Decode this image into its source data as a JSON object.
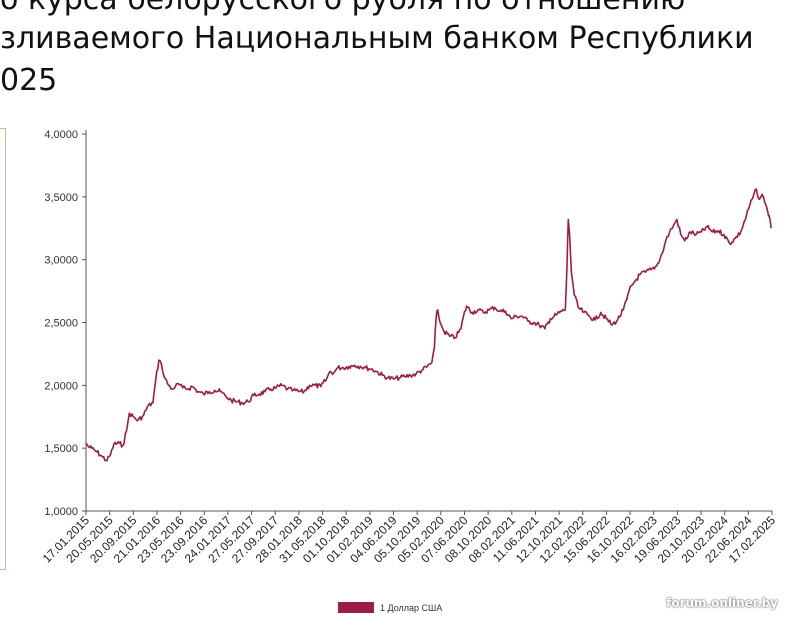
{
  "page": {
    "title_lines": [
      "о курса белорусского рубля по отношению",
      "зливаемого Национальным банком Республики",
      "025"
    ],
    "watermark": "forum.onliner.by"
  },
  "colors": {
    "series": "#9b1c46",
    "axis": "#555555",
    "frame": "#c9b896"
  },
  "chart_data": {
    "type": "line",
    "title": "",
    "xlabel": "",
    "ylabel": "",
    "ylim": [
      1.0,
      4.0
    ],
    "yticks": [
      "1,0000",
      "1,5000",
      "2,0000",
      "2,5000",
      "3,0000",
      "3,5000",
      "4,0000"
    ],
    "grid": false,
    "legend_position": "bottom",
    "xtick_labels": [
      "17.01.2015",
      "20.05.2015",
      "20.09.2015",
      "21.01.2016",
      "23.05.2016",
      "23.09.2016",
      "24.01.2017",
      "27.05.2017",
      "27.09.2017",
      "28.01.2018",
      "31.05.2018",
      "01.10.2018",
      "01.02.2019",
      "04.06.2019",
      "05.10.2019",
      "05.02.2020",
      "07.06.2020",
      "08.10.2020",
      "08.02.2021",
      "11.06.2021",
      "12.10.2021",
      "12.02.2022",
      "15.06.2022",
      "16.10.2022",
      "16.02.2023",
      "19.06.2023",
      "20.10.2023",
      "20.02.2024",
      "22.06.2024",
      "17.02.2025"
    ],
    "x_range": [
      "2015-01-01",
      "2025-03-20"
    ],
    "series": [
      {
        "name": "1 Доллар США",
        "color": "#9b1c46",
        "points": [
          [
            "2015-01-01",
            1.54
          ],
          [
            "2015-01-15",
            1.51
          ],
          [
            "2015-02-01",
            1.5
          ],
          [
            "2015-03-01",
            1.47
          ],
          [
            "2015-04-01",
            1.43
          ],
          [
            "2015-04-25",
            1.4
          ],
          [
            "2015-05-15",
            1.45
          ],
          [
            "2015-06-01",
            1.53
          ],
          [
            "2015-07-01",
            1.54
          ],
          [
            "2015-07-20",
            1.52
          ],
          [
            "2015-08-10",
            1.64
          ],
          [
            "2015-08-25",
            1.78
          ],
          [
            "2015-09-15",
            1.75
          ],
          [
            "2015-10-10",
            1.72
          ],
          [
            "2015-11-10",
            1.76
          ],
          [
            "2015-12-01",
            1.83
          ],
          [
            "2015-12-31",
            1.86
          ],
          [
            "2016-01-15",
            2.04
          ],
          [
            "2016-02-01",
            2.2
          ],
          [
            "2016-02-15",
            2.17
          ],
          [
            "2016-03-01",
            2.07
          ],
          [
            "2016-03-25",
            2.0
          ],
          [
            "2016-04-15",
            1.97
          ],
          [
            "2016-05-01",
            1.99
          ],
          [
            "2016-05-20",
            2.01
          ],
          [
            "2016-06-10",
            1.98
          ],
          [
            "2016-07-01",
            1.97
          ],
          [
            "2016-08-01",
            1.99
          ],
          [
            "2016-09-01",
            1.95
          ],
          [
            "2016-10-01",
            1.93
          ],
          [
            "2016-11-01",
            1.95
          ],
          [
            "2016-12-01",
            1.96
          ],
          [
            "2017-01-01",
            1.95
          ],
          [
            "2017-02-01",
            1.91
          ],
          [
            "2017-03-01",
            1.88
          ],
          [
            "2017-04-01",
            1.87
          ],
          [
            "2017-05-01",
            1.86
          ],
          [
            "2017-06-01",
            1.87
          ],
          [
            "2017-07-01",
            1.92
          ],
          [
            "2017-08-01",
            1.93
          ],
          [
            "2017-09-01",
            1.95
          ],
          [
            "2017-10-01",
            1.97
          ],
          [
            "2017-11-01",
            1.98
          ],
          [
            "2017-12-01",
            2.0
          ],
          [
            "2018-01-01",
            1.97
          ],
          [
            "2018-02-01",
            1.96
          ],
          [
            "2018-03-01",
            1.95
          ],
          [
            "2018-04-01",
            1.95
          ],
          [
            "2018-05-01",
            2.0
          ],
          [
            "2018-06-01",
            2.0
          ],
          [
            "2018-07-01",
            1.99
          ],
          [
            "2018-08-01",
            2.05
          ],
          [
            "2018-08-20",
            2.11
          ],
          [
            "2018-09-10",
            2.1
          ],
          [
            "2018-10-01",
            2.14
          ],
          [
            "2018-11-01",
            2.14
          ],
          [
            "2018-12-01",
            2.15
          ],
          [
            "2019-01-01",
            2.16
          ],
          [
            "2019-02-01",
            2.15
          ],
          [
            "2019-03-01",
            2.14
          ],
          [
            "2019-04-01",
            2.13
          ],
          [
            "2019-05-01",
            2.11
          ],
          [
            "2019-06-01",
            2.08
          ],
          [
            "2019-07-01",
            2.06
          ],
          [
            "2019-08-01",
            2.05
          ],
          [
            "2019-09-01",
            2.06
          ],
          [
            "2019-10-01",
            2.07
          ],
          [
            "2019-11-01",
            2.08
          ],
          [
            "2019-12-01",
            2.09
          ],
          [
            "2020-01-01",
            2.12
          ],
          [
            "2020-02-01",
            2.15
          ],
          [
            "2020-02-25",
            2.18
          ],
          [
            "2020-03-10",
            2.3
          ],
          [
            "2020-03-20",
            2.55
          ],
          [
            "2020-03-28",
            2.6
          ],
          [
            "2020-04-10",
            2.5
          ],
          [
            "2020-05-01",
            2.43
          ],
          [
            "2020-06-01",
            2.39
          ],
          [
            "2020-07-01",
            2.38
          ],
          [
            "2020-08-01",
            2.45
          ],
          [
            "2020-08-15",
            2.55
          ],
          [
            "2020-09-01",
            2.63
          ],
          [
            "2020-10-01",
            2.58
          ],
          [
            "2020-11-01",
            2.6
          ],
          [
            "2020-12-01",
            2.58
          ],
          [
            "2021-01-01",
            2.6
          ],
          [
            "2021-02-01",
            2.62
          ],
          [
            "2021-03-01",
            2.59
          ],
          [
            "2021-04-01",
            2.59
          ],
          [
            "2021-05-01",
            2.53
          ],
          [
            "2021-06-01",
            2.55
          ],
          [
            "2021-07-01",
            2.55
          ],
          [
            "2021-08-01",
            2.51
          ],
          [
            "2021-09-01",
            2.5
          ],
          [
            "2021-10-01",
            2.48
          ],
          [
            "2021-11-01",
            2.45
          ],
          [
            "2021-12-01",
            2.53
          ],
          [
            "2022-01-01",
            2.56
          ],
          [
            "2022-02-01",
            2.59
          ],
          [
            "2022-02-20",
            2.6
          ],
          [
            "2022-03-01",
            2.95
          ],
          [
            "2022-03-08",
            3.32
          ],
          [
            "2022-03-15",
            3.2
          ],
          [
            "2022-03-25",
            2.9
          ],
          [
            "2022-04-10",
            2.72
          ],
          [
            "2022-05-01",
            2.62
          ],
          [
            "2022-06-01",
            2.58
          ],
          [
            "2022-07-01",
            2.55
          ],
          [
            "2022-08-01",
            2.52
          ],
          [
            "2022-09-01",
            2.58
          ],
          [
            "2022-10-01",
            2.53
          ],
          [
            "2022-11-01",
            2.48
          ],
          [
            "2022-12-01",
            2.52
          ],
          [
            "2023-01-01",
            2.6
          ],
          [
            "2023-01-20",
            2.68
          ],
          [
            "2023-02-01",
            2.75
          ],
          [
            "2023-03-01",
            2.82
          ],
          [
            "2023-04-01",
            2.88
          ],
          [
            "2023-05-01",
            2.9
          ],
          [
            "2023-06-01",
            2.92
          ],
          [
            "2023-07-01",
            2.95
          ],
          [
            "2023-08-01",
            3.05
          ],
          [
            "2023-08-20",
            3.15
          ],
          [
            "2023-09-10",
            3.22
          ],
          [
            "2023-10-01",
            3.27
          ],
          [
            "2023-10-20",
            3.32
          ],
          [
            "2023-11-10",
            3.2
          ],
          [
            "2023-12-01",
            3.15
          ],
          [
            "2024-01-01",
            3.22
          ],
          [
            "2024-02-01",
            3.2
          ],
          [
            "2024-03-01",
            3.22
          ],
          [
            "2024-04-01",
            3.26
          ],
          [
            "2024-05-01",
            3.22
          ],
          [
            "2024-06-01",
            3.23
          ],
          [
            "2024-07-01",
            3.2
          ],
          [
            "2024-08-01",
            3.13
          ],
          [
            "2024-09-01",
            3.17
          ],
          [
            "2024-10-01",
            3.22
          ],
          [
            "2024-11-01",
            3.35
          ],
          [
            "2024-12-01",
            3.48
          ],
          [
            "2024-12-25",
            3.56
          ],
          [
            "2025-01-10",
            3.48
          ],
          [
            "2025-01-25",
            3.52
          ],
          [
            "2025-02-10",
            3.45
          ],
          [
            "2025-02-25",
            3.38
          ],
          [
            "2025-03-05",
            3.35
          ],
          [
            "2025-03-15",
            3.25
          ]
        ]
      }
    ]
  }
}
